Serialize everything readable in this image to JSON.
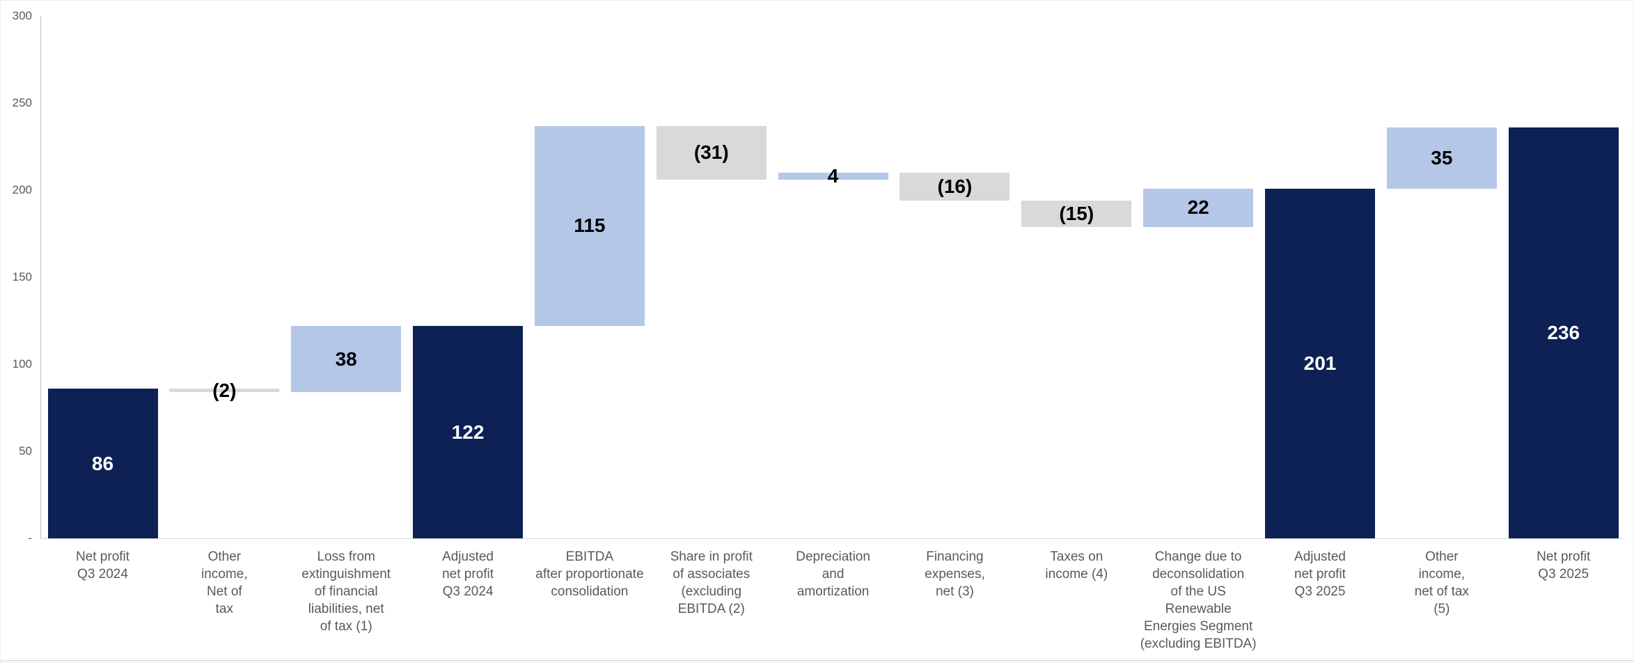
{
  "colors": {
    "total": "#0d2155",
    "increase": "#b4c7e7",
    "decrease": "#d9d9d9",
    "value_text": "#000000",
    "value_text_on_total": "#ffffff",
    "axis_text": "#595959",
    "category_text": "#595959",
    "axis_line": "#bfbfbf",
    "baseline": "#d9d9d9"
  },
  "chart_data": {
    "type": "bar",
    "subtype": "waterfall",
    "title": "",
    "xlabel": "",
    "ylabel": "",
    "ylim": [
      0,
      300
    ],
    "grid": false,
    "legend": false,
    "y_ticks": [
      {
        "value": 300,
        "label": "300"
      },
      {
        "value": 250,
        "label": "250"
      },
      {
        "value": 200,
        "label": "200"
      },
      {
        "value": 150,
        "label": "150"
      },
      {
        "value": 100,
        "label": "100"
      },
      {
        "value": 50,
        "label": "50"
      },
      {
        "value": 0,
        "label": "-"
      }
    ],
    "categories": [
      "Net profit Q3 2024",
      "Other income, Net of tax",
      "Loss from extinguishment of financial liabilities, net of tax (1)",
      "Adjusted net profit Q3 2024",
      "EBITDA after proportionate consolidation",
      "Share in profit of associates (excluding EBITDA (2)",
      "Depreciation and amortization",
      "Financing expenses, net (3)",
      "Taxes on income (4)",
      "Change due to deconsolidation of the US Renewable Energies Segment (excluding EBITDA)",
      "Adjusted net profit Q3 2025",
      "Other income, net of tax (5)",
      "Net profit Q3 2025"
    ],
    "bars": [
      {
        "category": "Net profit\nQ3 2024",
        "kind": "total",
        "value": 86,
        "start": 0,
        "end": 86,
        "label": "86"
      },
      {
        "category": "Other\nincome,\nNet of\ntax",
        "kind": "decrease",
        "value": -2,
        "start": 86,
        "end": 84,
        "label": "(2)"
      },
      {
        "category": "Loss from\nextinguishment\nof financial\nliabilities, net\nof tax (1)",
        "kind": "increase",
        "value": 38,
        "start": 84,
        "end": 122,
        "label": "38"
      },
      {
        "category": "Adjusted\nnet profit\nQ3 2024",
        "kind": "total",
        "value": 122,
        "start": 0,
        "end": 122,
        "label": "122"
      },
      {
        "category": "EBITDA\nafter proportionate\nconsolidation",
        "kind": "increase",
        "value": 115,
        "start": 122,
        "end": 237,
        "label": "115"
      },
      {
        "category": "Share in profit\nof associates\n(excluding\nEBITDA (2)",
        "kind": "decrease",
        "value": -31,
        "start": 237,
        "end": 206,
        "label": "(31)"
      },
      {
        "category": "Depreciation\nand\namortization",
        "kind": "increase",
        "value": 4,
        "start": 206,
        "end": 210,
        "label": "4"
      },
      {
        "category": "Financing\nexpenses,\nnet (3)",
        "kind": "decrease",
        "value": -16,
        "start": 210,
        "end": 194,
        "label": "(16)"
      },
      {
        "category": "Taxes on\nincome (4)",
        "kind": "decrease",
        "value": -15,
        "start": 194,
        "end": 179,
        "label": "(15)"
      },
      {
        "category": "Change due to\ndeconsolidation\nof the US\nRenewable\nEnergies Segment\n(excluding EBITDA)",
        "kind": "increase",
        "value": 22,
        "start": 179,
        "end": 201,
        "label": "22"
      },
      {
        "category": "Adjusted\nnet profit\nQ3 2025",
        "kind": "total",
        "value": 201,
        "start": 0,
        "end": 201,
        "label": "201"
      },
      {
        "category": "Other\nincome,\nnet of tax\n(5)",
        "kind": "increase",
        "value": 35,
        "start": 201,
        "end": 236,
        "label": "35"
      },
      {
        "category": "Net profit\nQ3 2025",
        "kind": "total",
        "value": 236,
        "start": 0,
        "end": 236,
        "label": "236"
      }
    ]
  }
}
